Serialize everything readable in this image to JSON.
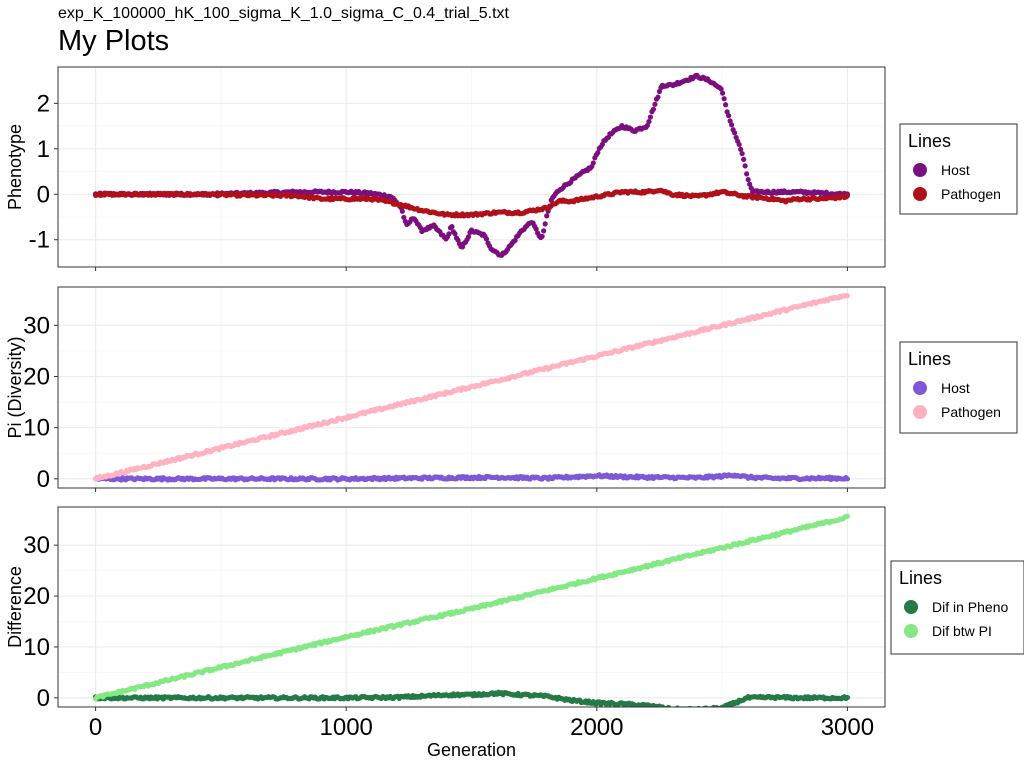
{
  "header": {
    "subtitle": "exp_K_100000_hK_100_sigma_K_1.0_sigma_C_0.4_trial_5.txt",
    "title": "My Plots"
  },
  "chart_data": [
    {
      "type": "scatter",
      "ylabel": "Phenotype",
      "xlabel": "",
      "xlim": [
        -150,
        3150
      ],
      "ylim": [
        -1.6,
        2.8
      ],
      "x_ticks": [
        0,
        1000,
        2000,
        3000
      ],
      "y_ticks": [
        -1,
        0,
        1,
        2
      ],
      "y_tick_labels": [
        "-1",
        "0",
        "1",
        "2"
      ],
      "x_tick_labels_visible": false,
      "grid": true,
      "legend": {
        "title": "Lines",
        "position": "right"
      },
      "series": [
        {
          "name": "Host",
          "color": "#7b0f7f",
          "points": [
            [
              0,
              0
            ],
            [
              200,
              0
            ],
            [
              400,
              0
            ],
            [
              600,
              0.02
            ],
            [
              800,
              0.05
            ],
            [
              1000,
              0.05
            ],
            [
              1100,
              0.02
            ],
            [
              1180,
              -0.05
            ],
            [
              1220,
              -0.3
            ],
            [
              1240,
              -0.7
            ],
            [
              1270,
              -0.5
            ],
            [
              1300,
              -0.8
            ],
            [
              1350,
              -0.7
            ],
            [
              1400,
              -1.0
            ],
            [
              1420,
              -0.7
            ],
            [
              1460,
              -1.2
            ],
            [
              1500,
              -0.8
            ],
            [
              1550,
              -0.9
            ],
            [
              1580,
              -1.2
            ],
            [
              1620,
              -1.35
            ],
            [
              1660,
              -1.1
            ],
            [
              1700,
              -0.8
            ],
            [
              1740,
              -0.6
            ],
            [
              1780,
              -1.0
            ],
            [
              1800,
              -0.5
            ],
            [
              1820,
              -0.1
            ],
            [
              1850,
              0.1
            ],
            [
              1900,
              0.3
            ],
            [
              1950,
              0.5
            ],
            [
              1980,
              0.6
            ],
            [
              2000,
              0.9
            ],
            [
              2020,
              1.1
            ],
            [
              2050,
              1.3
            ],
            [
              2100,
              1.5
            ],
            [
              2150,
              1.4
            ],
            [
              2200,
              1.5
            ],
            [
              2220,
              1.8
            ],
            [
              2240,
              2.1
            ],
            [
              2260,
              2.4
            ],
            [
              2300,
              2.4
            ],
            [
              2350,
              2.5
            ],
            [
              2400,
              2.6
            ],
            [
              2450,
              2.5
            ],
            [
              2500,
              2.3
            ],
            [
              2520,
              1.8
            ],
            [
              2540,
              1.5
            ],
            [
              2560,
              1.2
            ],
            [
              2580,
              0.9
            ],
            [
              2600,
              0.4
            ],
            [
              2620,
              0.05
            ],
            [
              2650,
              0.05
            ],
            [
              2800,
              0.05
            ],
            [
              3000,
              0.0
            ]
          ]
        },
        {
          "name": "Pathogen",
          "color": "#b0101a",
          "points": [
            [
              0,
              0
            ],
            [
              200,
              0
            ],
            [
              400,
              0
            ],
            [
              600,
              -0.02
            ],
            [
              800,
              -0.03
            ],
            [
              900,
              -0.1
            ],
            [
              1000,
              -0.1
            ],
            [
              1100,
              -0.1
            ],
            [
              1200,
              -0.2
            ],
            [
              1300,
              -0.35
            ],
            [
              1400,
              -0.45
            ],
            [
              1500,
              -0.45
            ],
            [
              1600,
              -0.4
            ],
            [
              1700,
              -0.4
            ],
            [
              1800,
              -0.3
            ],
            [
              1850,
              -0.15
            ],
            [
              1900,
              -0.15
            ],
            [
              2000,
              -0.05
            ],
            [
              2100,
              0.05
            ],
            [
              2200,
              0.05
            ],
            [
              2250,
              0.1
            ],
            [
              2300,
              0.0
            ],
            [
              2400,
              -0.05
            ],
            [
              2500,
              0.05
            ],
            [
              2600,
              -0.05
            ],
            [
              2700,
              -0.1
            ],
            [
              2750,
              -0.15
            ],
            [
              2800,
              -0.1
            ],
            [
              2900,
              -0.1
            ],
            [
              3000,
              -0.05
            ]
          ]
        }
      ]
    },
    {
      "type": "scatter",
      "ylabel": "Pi (Diversity)",
      "xlabel": "",
      "xlim": [
        -150,
        3150
      ],
      "ylim": [
        -1.8,
        37.5
      ],
      "x_ticks": [
        0,
        1000,
        2000,
        3000
      ],
      "y_ticks": [
        0,
        10,
        20,
        30
      ],
      "y_tick_labels": [
        "0",
        "10",
        "20",
        "30"
      ],
      "x_tick_labels_visible": false,
      "grid": true,
      "legend": {
        "title": "Lines",
        "position": "right"
      },
      "series": [
        {
          "name": "Host",
          "color": "#7f58d6",
          "points": [
            [
              0,
              0
            ],
            [
              500,
              0
            ],
            [
              1000,
              0
            ],
            [
              1200,
              0.1
            ],
            [
              1400,
              0.2
            ],
            [
              1600,
              0.3
            ],
            [
              1800,
              0.1
            ],
            [
              2000,
              0.6
            ],
            [
              2100,
              0.4
            ],
            [
              2200,
              0.3
            ],
            [
              2400,
              0.2
            ],
            [
              2500,
              0.5
            ],
            [
              2550,
              0.8
            ],
            [
              2600,
              0.3
            ],
            [
              2700,
              0.1
            ],
            [
              3000,
              0.1
            ]
          ]
        },
        {
          "name": "Pathogen",
          "color": "#ffb2c0",
          "points": [
            [
              0,
              0
            ],
            [
              500,
              6
            ],
            [
              1000,
              12
            ],
            [
              1500,
              18
            ],
            [
              2000,
              24
            ],
            [
              2500,
              30
            ],
            [
              3000,
              36
            ]
          ]
        }
      ]
    },
    {
      "type": "scatter",
      "ylabel": "Difference",
      "xlabel": "Generation",
      "xlim": [
        -150,
        3150
      ],
      "ylim": [
        -1.8,
        37.5
      ],
      "x_ticks": [
        0,
        1000,
        2000,
        3000
      ],
      "y_ticks": [
        0,
        10,
        20,
        30
      ],
      "y_tick_labels": [
        "0",
        "10",
        "20",
        "30"
      ],
      "x_tick_labels": [
        "0",
        "1000",
        "2000",
        "3000"
      ],
      "x_tick_labels_visible": true,
      "grid": true,
      "legend": {
        "title": "Lines",
        "position": "right"
      },
      "series": [
        {
          "name": "Dif in Pheno",
          "color": "#257a47",
          "points": [
            [
              0,
              0
            ],
            [
              500,
              0
            ],
            [
              1000,
              0
            ],
            [
              1200,
              0.1
            ],
            [
              1300,
              0.3
            ],
            [
              1400,
              0.6
            ],
            [
              1500,
              0.6
            ],
            [
              1600,
              0.9
            ],
            [
              1700,
              0.6
            ],
            [
              1800,
              0.3
            ],
            [
              1900,
              -0.5
            ],
            [
              2000,
              -1.0
            ],
            [
              2100,
              -1.2
            ],
            [
              2200,
              -1.5
            ],
            [
              2300,
              -2.2
            ],
            [
              2400,
              -2.3
            ],
            [
              2500,
              -2.0
            ],
            [
              2550,
              -1.0
            ],
            [
              2600,
              0.0
            ],
            [
              2700,
              0.1
            ],
            [
              2800,
              0.0
            ],
            [
              3000,
              0.0
            ]
          ]
        },
        {
          "name": "Dif btw PI",
          "color": "#84e884",
          "points": [
            [
              0,
              0
            ],
            [
              500,
              6
            ],
            [
              1000,
              12
            ],
            [
              1500,
              17.5
            ],
            [
              2000,
              23.5
            ],
            [
              2500,
              29.5
            ],
            [
              3000,
              35.5
            ]
          ]
        }
      ]
    }
  ]
}
